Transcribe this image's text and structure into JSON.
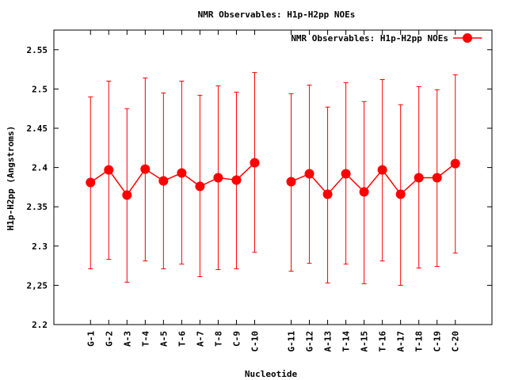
{
  "chart_data": {
    "type": "line",
    "title": "NMR Observables: H1p-H2pp NOEs",
    "xlabel": "Nucleotide",
    "ylabel": "H1p-H2pp (Angstroms)",
    "ylim": [
      2.2,
      2.575
    ],
    "yticks": [
      {
        "value": 2.2,
        "label": "2.2"
      },
      {
        "value": 2.25,
        "label": "2,25"
      },
      {
        "value": 2.3,
        "label": "2.3"
      },
      {
        "value": 2.35,
        "label": "2.35"
      },
      {
        "value": 2.4,
        "label": "2.4"
      },
      {
        "value": 2.45,
        "label": "2.45"
      },
      {
        "value": 2.5,
        "label": "2.5"
      },
      {
        "value": 2.55,
        "label": "2.55"
      }
    ],
    "grid": false,
    "legend_position": "top-right",
    "series_color": "#ff0000",
    "series": [
      {
        "name": "NMR Observables: H1p-H2pp NOEs",
        "points": [
          {
            "label": "G-1",
            "pos": 1,
            "y": 2.381,
            "lo": 2.271,
            "hi": 2.49
          },
          {
            "label": "G-2",
            "pos": 2,
            "y": 2.397,
            "lo": 2.283,
            "hi": 2.51
          },
          {
            "label": "A-3",
            "pos": 3,
            "y": 2.365,
            "lo": 2.254,
            "hi": 2.475
          },
          {
            "label": "T-4",
            "pos": 4,
            "y": 2.398,
            "lo": 2.281,
            "hi": 2.514
          },
          {
            "label": "A-5",
            "pos": 5,
            "y": 2.383,
            "lo": 2.271,
            "hi": 2.495
          },
          {
            "label": "T-6",
            "pos": 6,
            "y": 2.393,
            "lo": 2.277,
            "hi": 2.51
          },
          {
            "label": "A-7",
            "pos": 7,
            "y": 2.376,
            "lo": 2.261,
            "hi": 2.492
          },
          {
            "label": "T-8",
            "pos": 8,
            "y": 2.387,
            "lo": 2.27,
            "hi": 2.504
          },
          {
            "label": "C-9",
            "pos": 9,
            "y": 2.384,
            "lo": 2.271,
            "hi": 2.496
          },
          {
            "label": "C-10",
            "pos": 10,
            "y": 2.406,
            "lo": 2.292,
            "hi": 2.521
          },
          {
            "label": "G-11",
            "pos": 12,
            "y": 2.382,
            "lo": 2.268,
            "hi": 2.494
          },
          {
            "label": "G-12",
            "pos": 13,
            "y": 2.392,
            "lo": 2.278,
            "hi": 2.505
          },
          {
            "label": "A-13",
            "pos": 14,
            "y": 2.366,
            "lo": 2.253,
            "hi": 2.477
          },
          {
            "label": "T-14",
            "pos": 15,
            "y": 2.392,
            "lo": 2.277,
            "hi": 2.508
          },
          {
            "label": "A-15",
            "pos": 16,
            "y": 2.369,
            "lo": 2.252,
            "hi": 2.484
          },
          {
            "label": "T-16",
            "pos": 17,
            "y": 2.397,
            "lo": 2.281,
            "hi": 2.512
          },
          {
            "label": "A-17",
            "pos": 18,
            "y": 2.366,
            "lo": 2.25,
            "hi": 2.48
          },
          {
            "label": "T-18",
            "pos": 19,
            "y": 2.387,
            "lo": 2.272,
            "hi": 2.503
          },
          {
            "label": "C-19",
            "pos": 20,
            "y": 2.387,
            "lo": 2.274,
            "hi": 2.499
          },
          {
            "label": "C-20",
            "pos": 21,
            "y": 2.405,
            "lo": 2.291,
            "hi": 2.518
          }
        ]
      }
    ]
  }
}
